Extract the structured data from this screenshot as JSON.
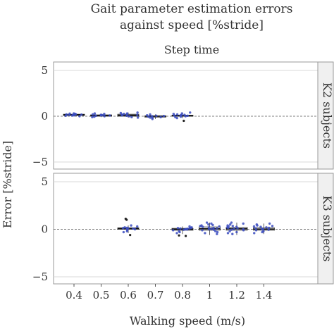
{
  "chart_data": {
    "type": "box",
    "title": "Gait parameter estimation errors against speed [%stride]",
    "title_lines": [
      "Gait parameter estimation errors",
      "against speed [%stride]"
    ],
    "subtitle": "Step time",
    "xlabel": "Walking speed (m/s)",
    "ylabel": "Error [%stride]",
    "categories": [
      "0.4",
      "0.5",
      "0.6",
      "0.7",
      "0.8",
      "1",
      "1.2",
      "1.4"
    ],
    "ylim": [
      -5,
      5
    ],
    "yticks": [
      -5,
      0,
      5
    ],
    "grid": true,
    "reference_line": 0,
    "colors": {
      "point": "#3b4cc0",
      "dark_point": "#222222",
      "box": "#333333",
      "grid": "#d9d9d9",
      "strip_bg": "#f0f0f0",
      "strip_border": "#999999"
    },
    "panels": [
      {
        "strip_label": "K2 subjects",
        "groups": [
          {
            "category": "0.4",
            "box": [
              0.02,
              0.08,
              0.15,
              0.22,
              0.35
            ],
            "points": [
              0.3,
              0.25,
              0.2,
              0.15,
              0.12,
              0.1,
              0.05,
              0.18,
              0.22,
              0.08,
              0.28,
              0.0
            ]
          },
          {
            "category": "0.5",
            "box": [
              -0.1,
              0.0,
              0.08,
              0.15,
              0.3
            ],
            "points": [
              0.25,
              0.2,
              0.1,
              0.05,
              0.0,
              -0.05,
              0.12,
              0.15,
              0.3,
              -0.1,
              0.08
            ]
          },
          {
            "category": "0.6",
            "box": [
              -0.15,
              0.0,
              0.1,
              0.22,
              0.4
            ],
            "points": [
              0.4,
              0.35,
              0.2,
              0.15,
              0.1,
              0.05,
              0.0,
              -0.1,
              0.25,
              0.18,
              -0.15,
              0.3
            ]
          },
          {
            "category": "0.7",
            "box": [
              -0.3,
              -0.1,
              0.0,
              0.05,
              0.2
            ],
            "points": [
              0.2,
              0.05,
              0.0,
              -0.05,
              -0.1,
              -0.2,
              -0.3,
              0.1,
              0.02,
              -0.15
            ]
          },
          {
            "category": "0.8",
            "box": [
              -0.2,
              0.0,
              0.05,
              0.12,
              0.4
            ],
            "points": [
              0.4,
              0.3,
              0.2,
              0.15,
              0.1,
              0.05,
              0.0,
              -0.1,
              -0.2,
              0.12,
              0.08,
              0.25,
              -0.05
            ],
            "outliers": [
              -0.5
            ]
          }
        ]
      },
      {
        "strip_label": "K3 subjects",
        "groups": [
          {
            "category": "0.6",
            "box": [
              -0.4,
              0.0,
              0.08,
              0.15,
              0.4
            ],
            "points": [
              0.4,
              0.3,
              0.2,
              0.15,
              0.1,
              0.05,
              0.0,
              -0.1,
              -0.2,
              -0.3,
              0.12,
              0.08
            ],
            "outliers": [
              1.1,
              1.0,
              -0.6
            ]
          },
          {
            "category": "0.8",
            "box": [
              -0.5,
              -0.1,
              0.0,
              0.1,
              0.3
            ],
            "points": [
              0.3,
              0.2,
              0.15,
              0.1,
              0.05,
              0.0,
              -0.05,
              -0.1,
              -0.2,
              -0.3,
              -0.4,
              0.08,
              0.02,
              -0.02,
              0.12
            ],
            "outliers": [
              -0.7,
              -0.65
            ]
          },
          {
            "category": "1",
            "box": [
              -0.6,
              -0.1,
              0.05,
              0.25,
              0.7
            ],
            "points": [
              0.7,
              0.6,
              0.5,
              0.4,
              0.3,
              0.2,
              0.1,
              0.05,
              0.0,
              -0.1,
              -0.2,
              -0.3,
              -0.4,
              0.35,
              0.25,
              -0.05,
              0.15,
              0.45,
              -0.5
            ]
          },
          {
            "category": "1.2",
            "box": [
              -0.6,
              -0.1,
              0.05,
              0.2,
              0.7
            ],
            "points": [
              0.7,
              0.6,
              0.5,
              0.4,
              0.3,
              0.2,
              0.1,
              0.0,
              -0.1,
              -0.2,
              -0.3,
              -0.4,
              -0.5,
              0.25,
              0.15,
              0.05,
              -0.05,
              0.35
            ]
          },
          {
            "category": "1.4",
            "box": [
              -0.5,
              -0.1,
              0.02,
              0.15,
              0.6
            ],
            "points": [
              0.6,
              0.5,
              0.4,
              0.3,
              0.2,
              0.1,
              0.0,
              -0.1,
              -0.2,
              -0.3,
              -0.4,
              0.15,
              0.05,
              -0.05,
              0.25,
              0.35
            ]
          }
        ]
      }
    ]
  }
}
